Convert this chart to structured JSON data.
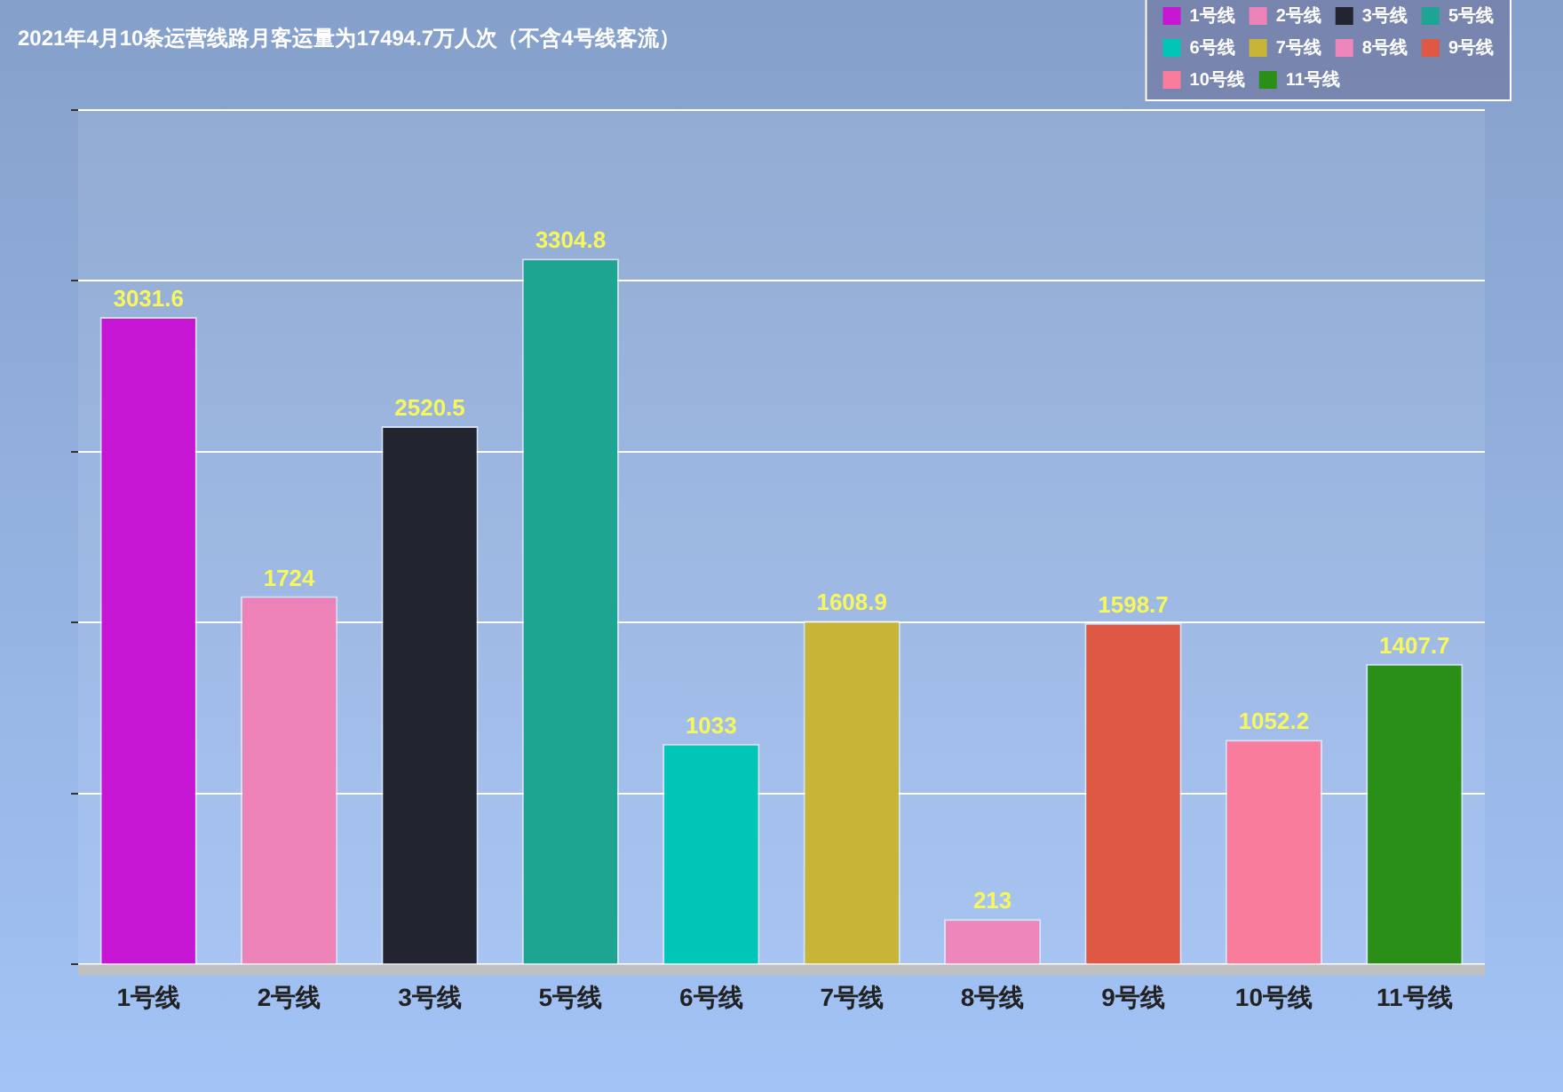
{
  "chart_data": {
    "type": "bar",
    "title": "2021年4月10条运营线路月客运量为17494.7万人次（不含4号线客流）",
    "categories": [
      "1号线",
      "2号线",
      "3号线",
      "5号线",
      "6号线",
      "7号线",
      "8号线",
      "9号线",
      "10号线",
      "11号线"
    ],
    "series": [
      {
        "name": "1号线",
        "color": "#c616d4",
        "values": [
          3031.6,
          null,
          null,
          null,
          null,
          null,
          null,
          null,
          null,
          null
        ]
      },
      {
        "name": "2号线",
        "color": "#ec82b8",
        "values": [
          null,
          1724,
          null,
          null,
          null,
          null,
          null,
          null,
          null,
          null
        ]
      },
      {
        "name": "3号线",
        "color": "#22252f",
        "values": [
          null,
          null,
          2520.5,
          null,
          null,
          null,
          null,
          null,
          null,
          null
        ]
      },
      {
        "name": "5号线",
        "color": "#1da592",
        "values": [
          null,
          null,
          null,
          3304.8,
          null,
          null,
          null,
          null,
          null,
          null
        ]
      },
      {
        "name": "6号线",
        "color": "#00c6b8",
        "values": [
          null,
          null,
          null,
          null,
          1033,
          null,
          null,
          null,
          null,
          null
        ]
      },
      {
        "name": "7号线",
        "color": "#c8b436",
        "values": [
          null,
          null,
          null,
          null,
          null,
          1608.9,
          null,
          null,
          null,
          null
        ]
      },
      {
        "name": "8号线",
        "color": "#ec86bb",
        "values": [
          null,
          null,
          null,
          null,
          null,
          null,
          213,
          null,
          null,
          null
        ]
      },
      {
        "name": "9号线",
        "color": "#df5843",
        "values": [
          null,
          null,
          null,
          null,
          null,
          null,
          null,
          1598.7,
          null,
          null
        ]
      },
      {
        "name": "10号线",
        "color": "#f97c9c",
        "values": [
          null,
          null,
          null,
          null,
          null,
          null,
          null,
          null,
          1052.2,
          null
        ]
      },
      {
        "name": "11号线",
        "color": "#2a8f16",
        "values": [
          null,
          null,
          null,
          null,
          null,
          null,
          null,
          null,
          null,
          1407.7
        ]
      }
    ],
    "ylim": [
      0,
      4000
    ],
    "yticks": [
      0,
      800,
      1600,
      2400,
      3200,
      4000
    ],
    "tick_labels": "x",
    "grid": "y",
    "legend": "top right",
    "data_labels": true
  }
}
